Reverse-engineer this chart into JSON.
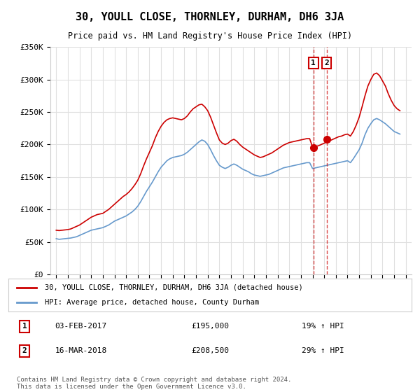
{
  "title": "30, YOULL CLOSE, THORNLEY, DURHAM, DH6 3JA",
  "subtitle": "Price paid vs. HM Land Registry's House Price Index (HPI)",
  "ylabel_ticks": [
    "£0",
    "£50K",
    "£100K",
    "£150K",
    "£200K",
    "£250K",
    "£300K",
    "£350K"
  ],
  "ylim": [
    0,
    350000
  ],
  "yticks": [
    0,
    50000,
    100000,
    150000,
    200000,
    250000,
    300000,
    350000
  ],
  "xlim_start": 1994.5,
  "xlim_end": 2025.5,
  "background_color": "#ffffff",
  "grid_color": "#e0e0e0",
  "red_color": "#cc0000",
  "blue_color": "#6699cc",
  "transaction1": {
    "date": "03-FEB-2017",
    "price": 195000,
    "label": "1",
    "year": 2017.08,
    "pct": "19%"
  },
  "transaction2": {
    "date": "16-MAR-2018",
    "price": 208500,
    "label": "2",
    "year": 2018.21,
    "pct": "29%"
  },
  "legend_line1": "30, YOULL CLOSE, THORNLEY, DURHAM, DH6 3JA (detached house)",
  "legend_line2": "HPI: Average price, detached house, County Durham",
  "footer": "Contains HM Land Registry data © Crown copyright and database right 2024.\nThis data is licensed under the Open Government Licence v3.0.",
  "hpi_data": {
    "dates": [
      1995.0,
      1995.25,
      1995.5,
      1995.75,
      1996.0,
      1996.25,
      1996.5,
      1996.75,
      1997.0,
      1997.25,
      1997.5,
      1997.75,
      1998.0,
      1998.25,
      1998.5,
      1998.75,
      1999.0,
      1999.25,
      1999.5,
      1999.75,
      2000.0,
      2000.25,
      2000.5,
      2000.75,
      2001.0,
      2001.25,
      2001.5,
      2001.75,
      2002.0,
      2002.25,
      2002.5,
      2002.75,
      2003.0,
      2003.25,
      2003.5,
      2003.75,
      2004.0,
      2004.25,
      2004.5,
      2004.75,
      2005.0,
      2005.25,
      2005.5,
      2005.75,
      2006.0,
      2006.25,
      2006.5,
      2006.75,
      2007.0,
      2007.25,
      2007.5,
      2007.75,
      2008.0,
      2008.25,
      2008.5,
      2008.75,
      2009.0,
      2009.25,
      2009.5,
      2009.75,
      2010.0,
      2010.25,
      2010.5,
      2010.75,
      2011.0,
      2011.25,
      2011.5,
      2011.75,
      2012.0,
      2012.25,
      2012.5,
      2012.75,
      2013.0,
      2013.25,
      2013.5,
      2013.75,
      2014.0,
      2014.25,
      2014.5,
      2014.75,
      2015.0,
      2015.25,
      2015.5,
      2015.75,
      2016.0,
      2016.25,
      2016.5,
      2016.75,
      2017.0,
      2017.25,
      2017.5,
      2017.75,
      2018.0,
      2018.25,
      2018.5,
      2018.75,
      2019.0,
      2019.25,
      2019.5,
      2019.75,
      2020.0,
      2020.25,
      2020.5,
      2020.75,
      2021.0,
      2021.25,
      2021.5,
      2021.75,
      2022.0,
      2022.25,
      2022.5,
      2022.75,
      2023.0,
      2023.25,
      2023.5,
      2023.75,
      2024.0,
      2024.25,
      2024.5
    ],
    "hpi": [
      55000,
      54000,
      54500,
      55000,
      55500,
      56000,
      57000,
      58000,
      60000,
      62000,
      64000,
      66000,
      68000,
      69000,
      70000,
      71000,
      72000,
      74000,
      76000,
      79000,
      82000,
      84000,
      86000,
      88000,
      90000,
      93000,
      96000,
      100000,
      105000,
      112000,
      120000,
      128000,
      135000,
      142000,
      150000,
      158000,
      165000,
      170000,
      175000,
      178000,
      180000,
      181000,
      182000,
      183000,
      185000,
      188000,
      192000,
      196000,
      200000,
      204000,
      207000,
      205000,
      200000,
      192000,
      183000,
      175000,
      168000,
      165000,
      163000,
      165000,
      168000,
      170000,
      168000,
      165000,
      162000,
      160000,
      158000,
      155000,
      153000,
      152000,
      151000,
      152000,
      153000,
      154000,
      156000,
      158000,
      160000,
      162000,
      164000,
      165000,
      166000,
      167000,
      168000,
      169000,
      170000,
      171000,
      172000,
      172000,
      163000,
      164000,
      165000,
      166000,
      167000,
      168000,
      169000,
      170000,
      171000,
      172000,
      173000,
      174000,
      175000,
      172000,
      178000,
      185000,
      192000,
      202000,
      215000,
      225000,
      232000,
      238000,
      240000,
      238000,
      235000,
      232000,
      228000,
      224000,
      220000,
      218000,
      216000
    ],
    "red": [
      68000,
      67500,
      68000,
      68500,
      69000,
      70000,
      72000,
      74000,
      76000,
      79000,
      82000,
      85000,
      88000,
      90000,
      92000,
      93000,
      94000,
      97000,
      100000,
      104000,
      108000,
      112000,
      116000,
      120000,
      123000,
      127000,
      132000,
      138000,
      145000,
      155000,
      167000,
      178000,
      188000,
      198000,
      210000,
      220000,
      228000,
      234000,
      238000,
      240000,
      241000,
      240000,
      239000,
      238000,
      240000,
      244000,
      250000,
      255000,
      258000,
      261000,
      262000,
      258000,
      252000,
      242000,
      230000,
      218000,
      207000,
      202000,
      200000,
      202000,
      206000,
      208000,
      205000,
      200000,
      196000,
      193000,
      190000,
      187000,
      184000,
      182000,
      180000,
      181000,
      183000,
      185000,
      187000,
      190000,
      193000,
      196000,
      199000,
      201000,
      203000,
      204000,
      205000,
      206000,
      207000,
      208000,
      209000,
      209000,
      196000,
      197000,
      198000,
      200000,
      202000,
      204000,
      206000,
      208000,
      210000,
      212000,
      213000,
      215000,
      216000,
      213000,
      220000,
      230000,
      242000,
      258000,
      275000,
      290000,
      300000,
      308000,
      310000,
      306000,
      298000,
      290000,
      278000,
      268000,
      260000,
      255000,
      252000
    ]
  }
}
